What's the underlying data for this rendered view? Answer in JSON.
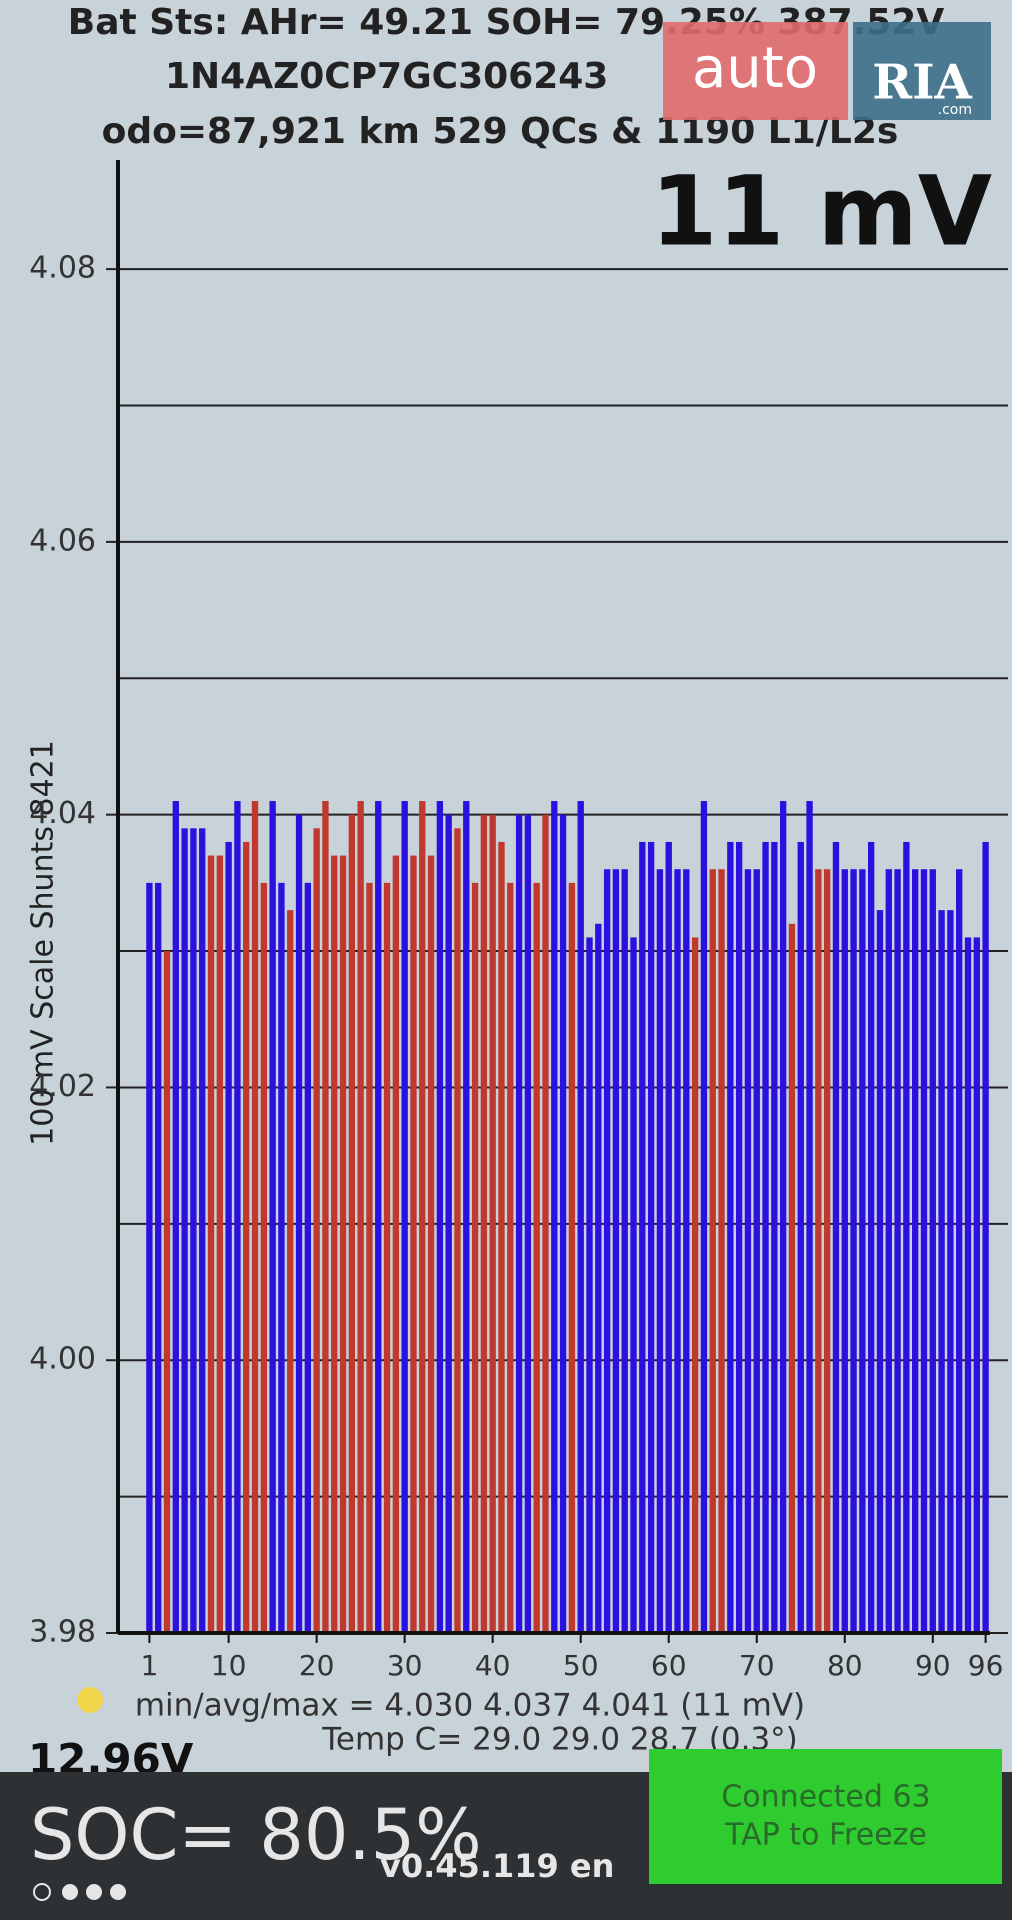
{
  "screen": {
    "header_line1": "Bat Sts: AHr= 49.21 SOH= 79.25% 387.52V",
    "header_line2": "1N4AZ0CP7GC306243",
    "header_line3": "odo=87,921 km 529 QCs & 1190 L1/L2s",
    "spread": "11 mV",
    "stats": "min/avg/max = 4.030 4.037 4.041  (11 mV)",
    "temp": "Temp C= 29.0  29.0  28.7  (0.3°)",
    "aux_voltage": "12.96V",
    "soc": "SOC= 80.5%",
    "version": "v0.45.119 en",
    "status_line1": "Connected 63",
    "status_line2": "TAP to Freeze",
    "watermark_auto": "auto",
    "watermark_ria": "RIA",
    "watermark_com": ".com"
  },
  "chart_data": {
    "type": "bar",
    "y_label": "100 mV Scale   Shunts 8421",
    "x": [
      1,
      2,
      3,
      4,
      5,
      6,
      7,
      8,
      9,
      10,
      11,
      12,
      13,
      14,
      15,
      16,
      17,
      18,
      19,
      20,
      21,
      22,
      23,
      24,
      25,
      26,
      27,
      28,
      29,
      30,
      31,
      32,
      33,
      34,
      35,
      36,
      37,
      38,
      39,
      40,
      41,
      42,
      43,
      44,
      45,
      46,
      47,
      48,
      49,
      50,
      51,
      52,
      53,
      54,
      55,
      56,
      57,
      58,
      59,
      60,
      61,
      62,
      63,
      64,
      65,
      66,
      67,
      68,
      69,
      70,
      71,
      72,
      73,
      74,
      75,
      76,
      77,
      78,
      79,
      80,
      81,
      82,
      83,
      84,
      85,
      86,
      87,
      88,
      89,
      90,
      91,
      92,
      93,
      94,
      95,
      96
    ],
    "values": [
      4.035,
      4.035,
      4.03,
      4.041,
      4.039,
      4.039,
      4.039,
      4.037,
      4.037,
      4.038,
      4.041,
      4.038,
      4.041,
      4.035,
      4.041,
      4.035,
      4.033,
      4.04,
      4.035,
      4.039,
      4.041,
      4.037,
      4.037,
      4.04,
      4.041,
      4.035,
      4.041,
      4.035,
      4.037,
      4.041,
      4.037,
      4.041,
      4.037,
      4.041,
      4.04,
      4.039,
      4.041,
      4.035,
      4.04,
      4.04,
      4.038,
      4.035,
      4.04,
      4.04,
      4.035,
      4.04,
      4.041,
      4.04,
      4.035,
      4.041,
      4.031,
      4.032,
      4.036,
      4.036,
      4.036,
      4.031,
      4.038,
      4.038,
      4.036,
      4.038,
      4.036,
      4.036,
      4.031,
      4.041,
      4.036,
      4.036,
      4.038,
      4.038,
      4.036,
      4.036,
      4.038,
      4.038,
      4.041,
      4.032,
      4.038,
      4.041,
      4.036,
      4.036,
      4.038,
      4.036,
      4.036,
      4.036,
      4.038,
      4.033,
      4.036,
      4.036,
      4.038,
      4.036,
      4.036,
      4.036,
      4.033,
      4.033,
      4.036,
      4.031,
      4.031,
      4.038
    ],
    "colors": [
      "#2c10e0",
      "#2c10e0",
      "#c0392e",
      "#2c10e0",
      "#2c10e0",
      "#2c10e0",
      "#2c10e0",
      "#c0392e",
      "#c0392e",
      "#2c10e0",
      "#2c10e0",
      "#c0392e",
      "#c0392e",
      "#c0392e",
      "#2c10e0",
      "#2c10e0",
      "#c0392e",
      "#2c10e0",
      "#2c10e0",
      "#c0392e",
      "#c0392e",
      "#c0392e",
      "#c0392e",
      "#c0392e",
      "#c0392e",
      "#c0392e",
      "#2c10e0",
      "#c0392e",
      "#c0392e",
      "#2c10e0",
      "#c0392e",
      "#c0392e",
      "#c0392e",
      "#2c10e0",
      "#2c10e0",
      "#c0392e",
      "#2c10e0",
      "#c0392e",
      "#c0392e",
      "#c0392e",
      "#c0392e",
      "#c0392e",
      "#2c10e0",
      "#2c10e0",
      "#c0392e",
      "#c0392e",
      "#2c10e0",
      "#2c10e0",
      "#c0392e",
      "#2c10e0",
      "#2c10e0",
      "#2c10e0",
      "#2c10e0",
      "#2c10e0",
      "#2c10e0",
      "#2c10e0",
      "#2c10e0",
      "#2c10e0",
      "#2c10e0",
      "#2c10e0",
      "#2c10e0",
      "#2c10e0",
      "#c0392e",
      "#2c10e0",
      "#c0392e",
      "#c0392e",
      "#2c10e0",
      "#2c10e0",
      "#2c10e0",
      "#2c10e0",
      "#2c10e0",
      "#2c10e0",
      "#2c10e0",
      "#c0392e",
      "#2c10e0",
      "#2c10e0",
      "#c0392e",
      "#c0392e",
      "#2c10e0",
      "#2c10e0",
      "#2c10e0",
      "#2c10e0",
      "#2c10e0",
      "#2c10e0",
      "#2c10e0",
      "#2c10e0",
      "#2c10e0",
      "#2c10e0",
      "#2c10e0",
      "#2c10e0",
      "#2c10e0",
      "#2c10e0",
      "#2c10e0",
      "#2c10e0",
      "#2c10e0",
      "#2c10e0"
    ],
    "xlim": [
      0.5,
      96.5
    ],
    "xticks": [
      1,
      10,
      20,
      30,
      40,
      50,
      60,
      70,
      80,
      90,
      96
    ],
    "ylim": [
      3.98,
      4.088
    ],
    "yticks": [
      3.98,
      {
        "value": 4,
        "label": "4.00"
      },
      4.02,
      4.04,
      4.06,
      4.08
    ],
    "minor_yticks": [
      3.99,
      4.01,
      4.03,
      4.05,
      4.07
    ],
    "grid": true
  }
}
